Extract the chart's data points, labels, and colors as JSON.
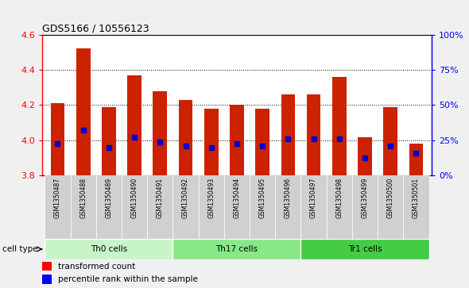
{
  "title": "GDS5166 / 10556123",
  "samples": [
    "GSM1350487",
    "GSM1350488",
    "GSM1350489",
    "GSM1350490",
    "GSM1350491",
    "GSM1350492",
    "GSM1350493",
    "GSM1350494",
    "GSM1350495",
    "GSM1350496",
    "GSM1350497",
    "GSM1350498",
    "GSM1350499",
    "GSM1350500",
    "GSM1350501"
  ],
  "bar_values": [
    4.21,
    4.52,
    4.19,
    4.37,
    4.28,
    4.23,
    4.18,
    4.2,
    4.18,
    4.26,
    4.26,
    4.36,
    4.02,
    4.19,
    3.98
  ],
  "blue_values": [
    3.98,
    4.06,
    3.96,
    4.02,
    3.99,
    3.97,
    3.96,
    3.98,
    3.97,
    4.01,
    4.01,
    4.01,
    3.9,
    3.97,
    3.93
  ],
  "cell_groups": [
    {
      "label": "Th0 cells",
      "start": 0,
      "end": 4,
      "color": "#c8f5c8"
    },
    {
      "label": "Th17 cells",
      "start": 5,
      "end": 9,
      "color": "#88e888"
    },
    {
      "label": "Tr1 cells",
      "start": 10,
      "end": 14,
      "color": "#44cc44"
    }
  ],
  "ylim": [
    3.8,
    4.6
  ],
  "y_ticks": [
    3.8,
    4.0,
    4.2,
    4.4,
    4.6
  ],
  "right_ylim": [
    0,
    100
  ],
  "right_yticks": [
    0,
    25,
    50,
    75,
    100
  ],
  "bar_color": "#cc2200",
  "blue_color": "#0000cc",
  "bar_bottom": 3.8,
  "plot_bg": "#ffffff",
  "fig_bg": "#f0f0f0",
  "tick_col_bg": "#d0d0d0"
}
